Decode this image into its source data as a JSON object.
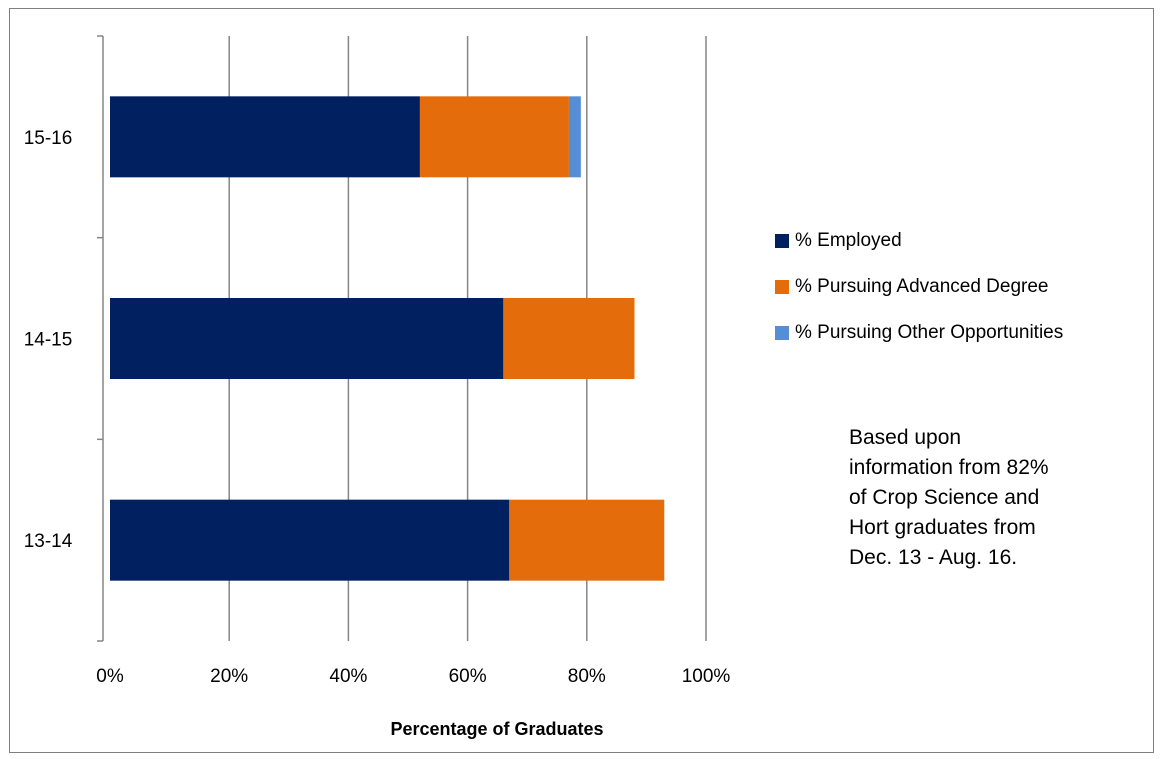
{
  "chart_data": {
    "type": "bar",
    "orientation": "horizontal",
    "stacked": true,
    "categories": [
      "15-16",
      "14-15",
      "13-14"
    ],
    "series": [
      {
        "name": "% Employed",
        "color": "#002060",
        "values": [
          52,
          66,
          67
        ]
      },
      {
        "name": "% Pursuing Advanced Degree",
        "color": "#E46C0A",
        "values": [
          25,
          22,
          26
        ]
      },
      {
        "name": "% Pursuing Other Opportunities",
        "color": "#558ED5",
        "values": [
          2,
          0,
          0
        ]
      }
    ],
    "x_ticks": [
      "0%",
      "20%",
      "40%",
      "60%",
      "80%",
      "100%"
    ],
    "xlim": [
      0,
      100
    ],
    "xlabel": "Percentage of Graduates",
    "ylabel": "",
    "title": "",
    "grid": true,
    "legend_position": "right",
    "annotation": "Based upon information from 82% of Crop Science and Hort  graduates from Dec. 13 - Aug. 16."
  }
}
